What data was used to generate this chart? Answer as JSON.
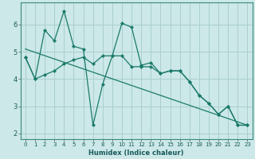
{
  "xlabel": "Humidex (Indice chaleur)",
  "bg_color": "#cce8e8",
  "line_color": "#1a7a6a",
  "grid_color": "#aacfcf",
  "x_data": [
    0,
    1,
    2,
    3,
    4,
    5,
    6,
    7,
    8,
    9,
    10,
    11,
    12,
    13,
    14,
    15,
    16,
    17,
    18,
    19,
    20,
    21,
    22,
    23
  ],
  "y_data1": [
    4.8,
    4.0,
    5.8,
    5.4,
    6.5,
    5.2,
    5.1,
    2.3,
    3.8,
    4.85,
    6.05,
    5.9,
    4.5,
    4.6,
    4.2,
    4.3,
    4.3,
    3.9,
    3.4,
    3.1,
    2.7,
    3.0,
    2.3,
    2.3
  ],
  "y_data2": [
    4.8,
    4.0,
    4.15,
    4.3,
    4.55,
    4.7,
    4.8,
    4.55,
    4.85,
    4.85,
    4.85,
    4.45,
    4.45,
    4.45,
    4.2,
    4.3,
    4.3,
    3.9,
    3.4,
    3.1,
    2.7,
    3.0,
    2.3,
    2.3
  ],
  "trend_x": [
    0,
    23
  ],
  "trend_y": [
    5.1,
    2.3
  ],
  "xlim": [
    -0.5,
    23.5
  ],
  "ylim": [
    1.8,
    6.8
  ],
  "xticks": [
    0,
    1,
    2,
    3,
    4,
    5,
    6,
    7,
    8,
    9,
    10,
    11,
    12,
    13,
    14,
    15,
    16,
    17,
    18,
    19,
    20,
    21,
    22,
    23
  ],
  "yticks": [
    2,
    3,
    4,
    5,
    6
  ],
  "xlabel_fontsize": 6,
  "tick_fontsize_x": 5,
  "tick_fontsize_y": 6
}
